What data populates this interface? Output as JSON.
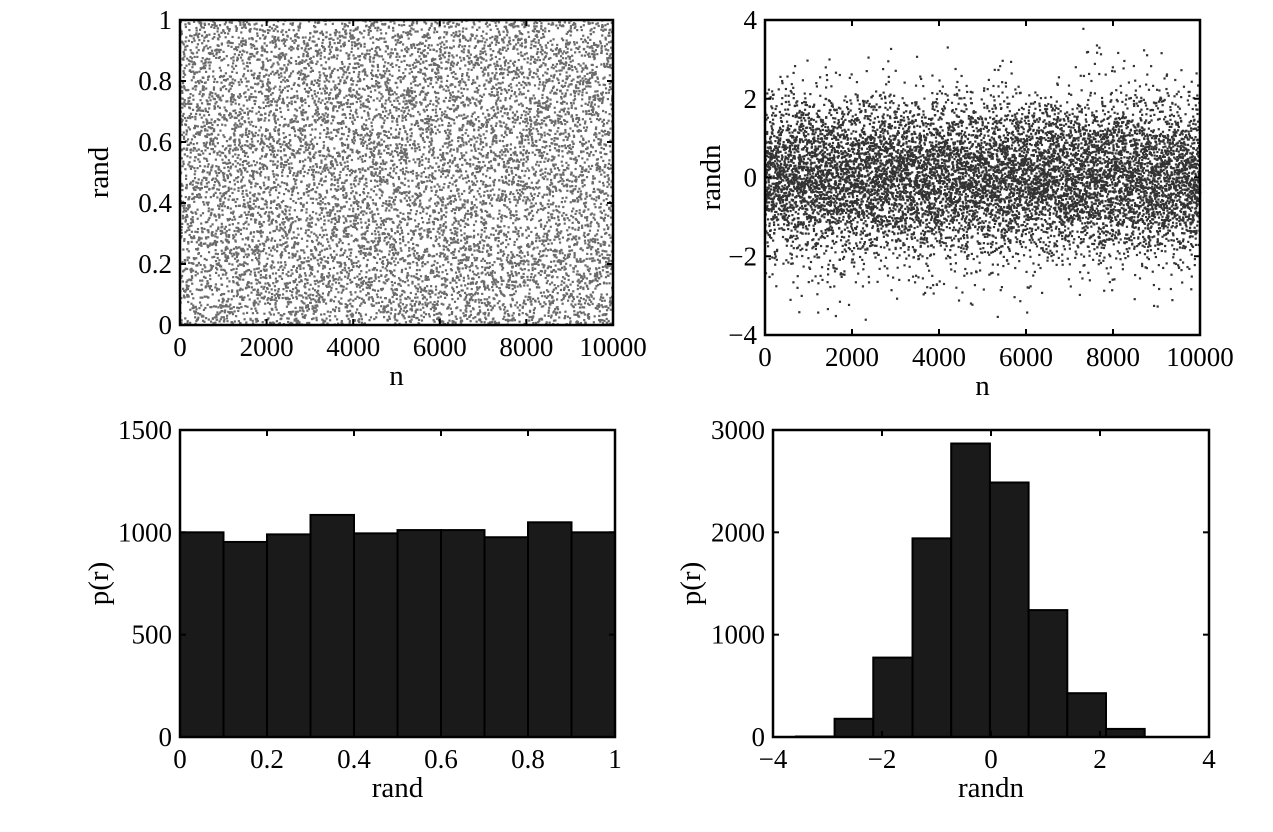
{
  "chart_data": [
    {
      "id": "rand-scatter",
      "type": "scatter",
      "xlabel": "n",
      "ylabel": "rand",
      "xlim": [
        0,
        10000
      ],
      "ylim": [
        0,
        1
      ],
      "xticks": [
        "0",
        "2000",
        "4000",
        "6000",
        "8000",
        "10000"
      ],
      "yticks": [
        "0",
        "0.2",
        "0.4",
        "0.6",
        "0.8",
        "1"
      ],
      "n_points": 10000,
      "distribution": "uniform(0,1)",
      "color": "#6a6a6a"
    },
    {
      "id": "randn-scatter",
      "type": "scatter",
      "xlabel": "n",
      "ylabel": "randn",
      "xlim": [
        0,
        10000
      ],
      "ylim": [
        -4,
        4
      ],
      "xticks": [
        "0",
        "2000",
        "4000",
        "6000",
        "8000",
        "10000"
      ],
      "yticks": [
        "−4",
        "−2",
        "0",
        "2",
        "4"
      ],
      "n_points": 10000,
      "distribution": "normal(0,1)",
      "color": "#333333"
    },
    {
      "id": "rand-hist",
      "type": "bar",
      "xlabel": "rand",
      "ylabel": "p(r)",
      "xlim": [
        0,
        1
      ],
      "ylim": [
        0,
        1500
      ],
      "xticks": [
        "0",
        "0.2",
        "0.4",
        "0.6",
        "0.8",
        "1"
      ],
      "yticks": [
        "0",
        "500",
        "1000",
        "1500"
      ],
      "bin_edges": [
        0,
        0.1,
        0.2,
        0.3,
        0.4,
        0.5,
        0.6,
        0.7,
        0.8,
        0.9,
        1.0
      ],
      "values": [
        1000,
        953,
        990,
        1085,
        995,
        1011,
        1011,
        976,
        1049,
        1000
      ],
      "color": "#1a1a1a"
    },
    {
      "id": "randn-hist",
      "type": "bar",
      "xlabel": "randn",
      "ylabel": "p(r)",
      "xlim": [
        -4,
        4
      ],
      "ylim": [
        0,
        3000
      ],
      "xticks": [
        "−4",
        "−2",
        "0",
        "2",
        "4"
      ],
      "yticks": [
        "0",
        "1000",
        "2000",
        "3000"
      ],
      "bin_edges": [
        -3.58,
        -2.87,
        -2.16,
        -1.44,
        -0.73,
        -0.02,
        0.69,
        1.4,
        2.11,
        2.82
      ],
      "values": [
        5,
        178,
        776,
        1941,
        2868,
        2487,
        1240,
        428,
        79
      ],
      "color": "#1a1a1a"
    }
  ]
}
